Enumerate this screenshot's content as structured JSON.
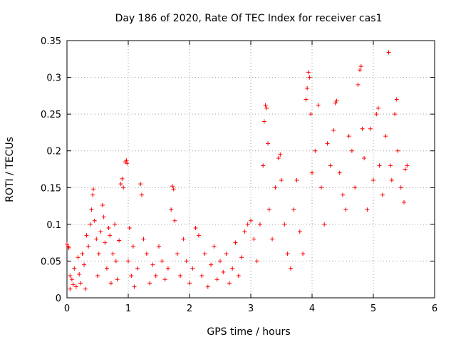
{
  "chart_data": {
    "type": "scatter",
    "title": "Day 186 of 2020, Rate Of TEC Index for receiver cas1",
    "xlabel": "GPS time / hours",
    "ylabel": "ROTI / TECUs",
    "xlim": [
      0,
      6
    ],
    "ylim": [
      0,
      0.35
    ],
    "x_ticks": [
      0,
      1,
      2,
      3,
      4,
      5,
      6
    ],
    "x_tick_labels": [
      "0",
      "1",
      "2",
      "3",
      "4",
      "5",
      "6"
    ],
    "y_ticks": [
      0,
      0.05,
      0.1,
      0.15,
      0.2,
      0.25,
      0.3,
      0.35
    ],
    "y_tick_labels": [
      "0",
      "0.05",
      "0.1",
      "0.15",
      "0.2",
      "0.25",
      "0.3",
      "0.35"
    ],
    "grid": true,
    "marker": "plus",
    "series": [
      {
        "name": "cas1",
        "color": "#ff0000",
        "points": [
          [
            0.0,
            0.073
          ],
          [
            0.02,
            0.07
          ],
          [
            0.03,
            0.068
          ],
          [
            0.05,
            0.03
          ],
          [
            0.05,
            0.012
          ],
          [
            0.08,
            0.025
          ],
          [
            0.1,
            0.018
          ],
          [
            0.12,
            0.04
          ],
          [
            0.15,
            0.015
          ],
          [
            0.18,
            0.055
          ],
          [
            0.2,
            0.032
          ],
          [
            0.22,
            0.02
          ],
          [
            0.25,
            0.06
          ],
          [
            0.28,
            0.045
          ],
          [
            0.3,
            0.012
          ],
          [
            0.32,
            0.085
          ],
          [
            0.35,
            0.07
          ],
          [
            0.38,
            0.1
          ],
          [
            0.4,
            0.12
          ],
          [
            0.42,
            0.14
          ],
          [
            0.43,
            0.148
          ],
          [
            0.45,
            0.105
          ],
          [
            0.48,
            0.08
          ],
          [
            0.5,
            0.03
          ],
          [
            0.52,
            0.06
          ],
          [
            0.55,
            0.09
          ],
          [
            0.58,
            0.126
          ],
          [
            0.6,
            0.11
          ],
          [
            0.62,
            0.075
          ],
          [
            0.65,
            0.04
          ],
          [
            0.68,
            0.095
          ],
          [
            0.7,
            0.085
          ],
          [
            0.72,
            0.02
          ],
          [
            0.75,
            0.06
          ],
          [
            0.78,
            0.1
          ],
          [
            0.8,
            0.05
          ],
          [
            0.82,
            0.025
          ],
          [
            0.85,
            0.078
          ],
          [
            0.88,
            0.155
          ],
          [
            0.9,
            0.162
          ],
          [
            0.92,
            0.15
          ],
          [
            0.95,
            0.185
          ],
          [
            0.97,
            0.187
          ],
          [
            0.98,
            0.183
          ],
          [
            1.0,
            0.05
          ],
          [
            1.02,
            0.095
          ],
          [
            1.05,
            0.03
          ],
          [
            1.08,
            0.07
          ],
          [
            1.1,
            0.015
          ],
          [
            1.15,
            0.04
          ],
          [
            1.2,
            0.155
          ],
          [
            1.22,
            0.14
          ],
          [
            1.25,
            0.08
          ],
          [
            1.3,
            0.06
          ],
          [
            1.35,
            0.02
          ],
          [
            1.4,
            0.045
          ],
          [
            1.45,
            0.03
          ],
          [
            1.5,
            0.07
          ],
          [
            1.55,
            0.05
          ],
          [
            1.6,
            0.025
          ],
          [
            1.65,
            0.04
          ],
          [
            1.7,
            0.12
          ],
          [
            1.72,
            0.152
          ],
          [
            1.74,
            0.148
          ],
          [
            1.76,
            0.105
          ],
          [
            1.8,
            0.06
          ],
          [
            1.85,
            0.03
          ],
          [
            1.9,
            0.08
          ],
          [
            1.95,
            0.05
          ],
          [
            2.0,
            0.02
          ],
          [
            2.05,
            0.04
          ],
          [
            2.1,
            0.095
          ],
          [
            2.15,
            0.085
          ],
          [
            2.2,
            0.03
          ],
          [
            2.25,
            0.06
          ],
          [
            2.3,
            0.015
          ],
          [
            2.35,
            0.045
          ],
          [
            2.4,
            0.07
          ],
          [
            2.45,
            0.025
          ],
          [
            2.5,
            0.05
          ],
          [
            2.55,
            0.035
          ],
          [
            2.6,
            0.06
          ],
          [
            2.65,
            0.02
          ],
          [
            2.7,
            0.04
          ],
          [
            2.75,
            0.075
          ],
          [
            2.8,
            0.03
          ],
          [
            2.85,
            0.055
          ],
          [
            2.9,
            0.09
          ],
          [
            2.95,
            0.1
          ],
          [
            3.0,
            0.105
          ],
          [
            3.05,
            0.08
          ],
          [
            3.1,
            0.05
          ],
          [
            3.15,
            0.1
          ],
          [
            3.2,
            0.18
          ],
          [
            3.22,
            0.24
          ],
          [
            3.24,
            0.262
          ],
          [
            3.26,
            0.258
          ],
          [
            3.28,
            0.21
          ],
          [
            3.3,
            0.12
          ],
          [
            3.35,
            0.08
          ],
          [
            3.4,
            0.15
          ],
          [
            3.45,
            0.19
          ],
          [
            3.48,
            0.195
          ],
          [
            3.5,
            0.16
          ],
          [
            3.55,
            0.1
          ],
          [
            3.6,
            0.06
          ],
          [
            3.65,
            0.04
          ],
          [
            3.7,
            0.12
          ],
          [
            3.75,
            0.16
          ],
          [
            3.8,
            0.09
          ],
          [
            3.85,
            0.06
          ],
          [
            3.9,
            0.27
          ],
          [
            3.92,
            0.285
          ],
          [
            3.94,
            0.307
          ],
          [
            3.96,
            0.3
          ],
          [
            3.98,
            0.25
          ],
          [
            4.0,
            0.17
          ],
          [
            4.05,
            0.2
          ],
          [
            4.1,
            0.262
          ],
          [
            4.15,
            0.15
          ],
          [
            4.2,
            0.1
          ],
          [
            4.25,
            0.21
          ],
          [
            4.3,
            0.18
          ],
          [
            4.35,
            0.228
          ],
          [
            4.38,
            0.265
          ],
          [
            4.4,
            0.268
          ],
          [
            4.45,
            0.17
          ],
          [
            4.5,
            0.14
          ],
          [
            4.55,
            0.12
          ],
          [
            4.6,
            0.22
          ],
          [
            4.65,
            0.2
          ],
          [
            4.7,
            0.15
          ],
          [
            4.75,
            0.29
          ],
          [
            4.78,
            0.31
          ],
          [
            4.8,
            0.315
          ],
          [
            4.82,
            0.23
          ],
          [
            4.85,
            0.19
          ],
          [
            4.9,
            0.12
          ],
          [
            4.95,
            0.23
          ],
          [
            5.0,
            0.16
          ],
          [
            5.05,
            0.25
          ],
          [
            5.08,
            0.258
          ],
          [
            5.1,
            0.18
          ],
          [
            5.15,
            0.14
          ],
          [
            5.2,
            0.22
          ],
          [
            5.25,
            0.334
          ],
          [
            5.28,
            0.18
          ],
          [
            5.3,
            0.16
          ],
          [
            5.35,
            0.25
          ],
          [
            5.38,
            0.27
          ],
          [
            5.4,
            0.2
          ],
          [
            5.45,
            0.15
          ],
          [
            5.5,
            0.13
          ],
          [
            5.52,
            0.175
          ],
          [
            5.55,
            0.18
          ]
        ]
      }
    ]
  }
}
